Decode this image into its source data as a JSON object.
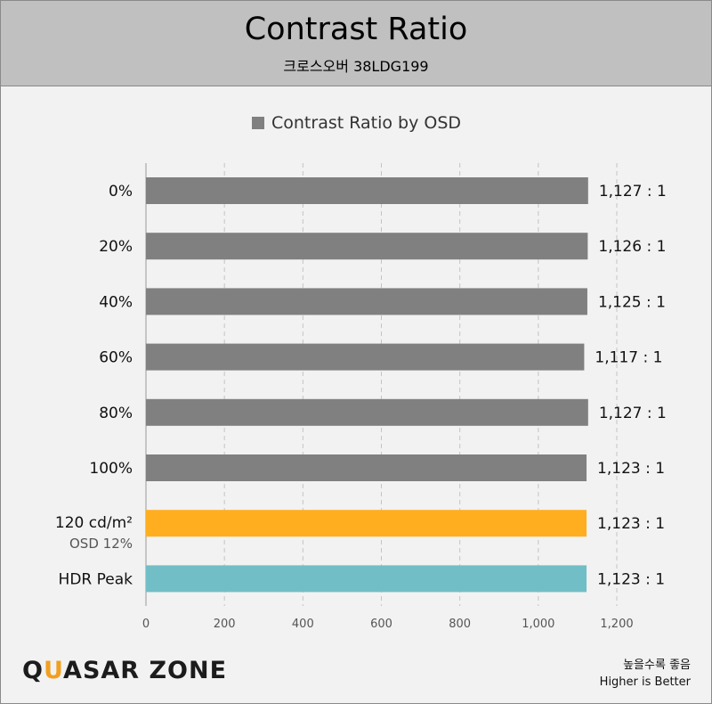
{
  "header": {
    "title": "Contrast Ratio",
    "subtitle": "크로스오버 38LDG199"
  },
  "legend": {
    "label": "Contrast Ratio by OSD"
  },
  "chart_data": {
    "type": "bar",
    "orientation": "horizontal",
    "categories": [
      "0%",
      "20%",
      "40%",
      "60%",
      "80%",
      "100%",
      "120 cd/m²",
      "HDR Peak"
    ],
    "category_sublabels": [
      "",
      "",
      "",
      "",
      "",
      "",
      "OSD 12%",
      ""
    ],
    "values": [
      1127,
      1126,
      1125,
      1117,
      1127,
      1123,
      1123,
      1123
    ],
    "value_labels": [
      "1,127 : 1",
      "1,126 : 1",
      "1,125 : 1",
      "1,117 : 1",
      "1,127 : 1",
      "1,123 : 1",
      "1,123 : 1",
      "1,123 : 1"
    ],
    "bar_colors": [
      "#808080",
      "#808080",
      "#808080",
      "#808080",
      "#808080",
      "#808080",
      "#ffae20",
      "#72bec6"
    ],
    "series": [
      {
        "name": "Contrast Ratio by OSD",
        "values": [
          1127,
          1126,
          1125,
          1117,
          1127,
          1123,
          1123,
          1123
        ]
      }
    ],
    "xlim": [
      0,
      1200
    ],
    "ticks": [
      0,
      200,
      400,
      600,
      800,
      1000,
      1200
    ],
    "tick_labels": [
      "0",
      "200",
      "400",
      "600",
      "800",
      "1,000",
      "1,200"
    ],
    "grid": "vertical dashed",
    "legend_position": "top"
  },
  "footer": {
    "logo_text": "QUASAR ZONE",
    "note_ko": "높을수록 좋음",
    "note_en": "Higher is Better"
  }
}
